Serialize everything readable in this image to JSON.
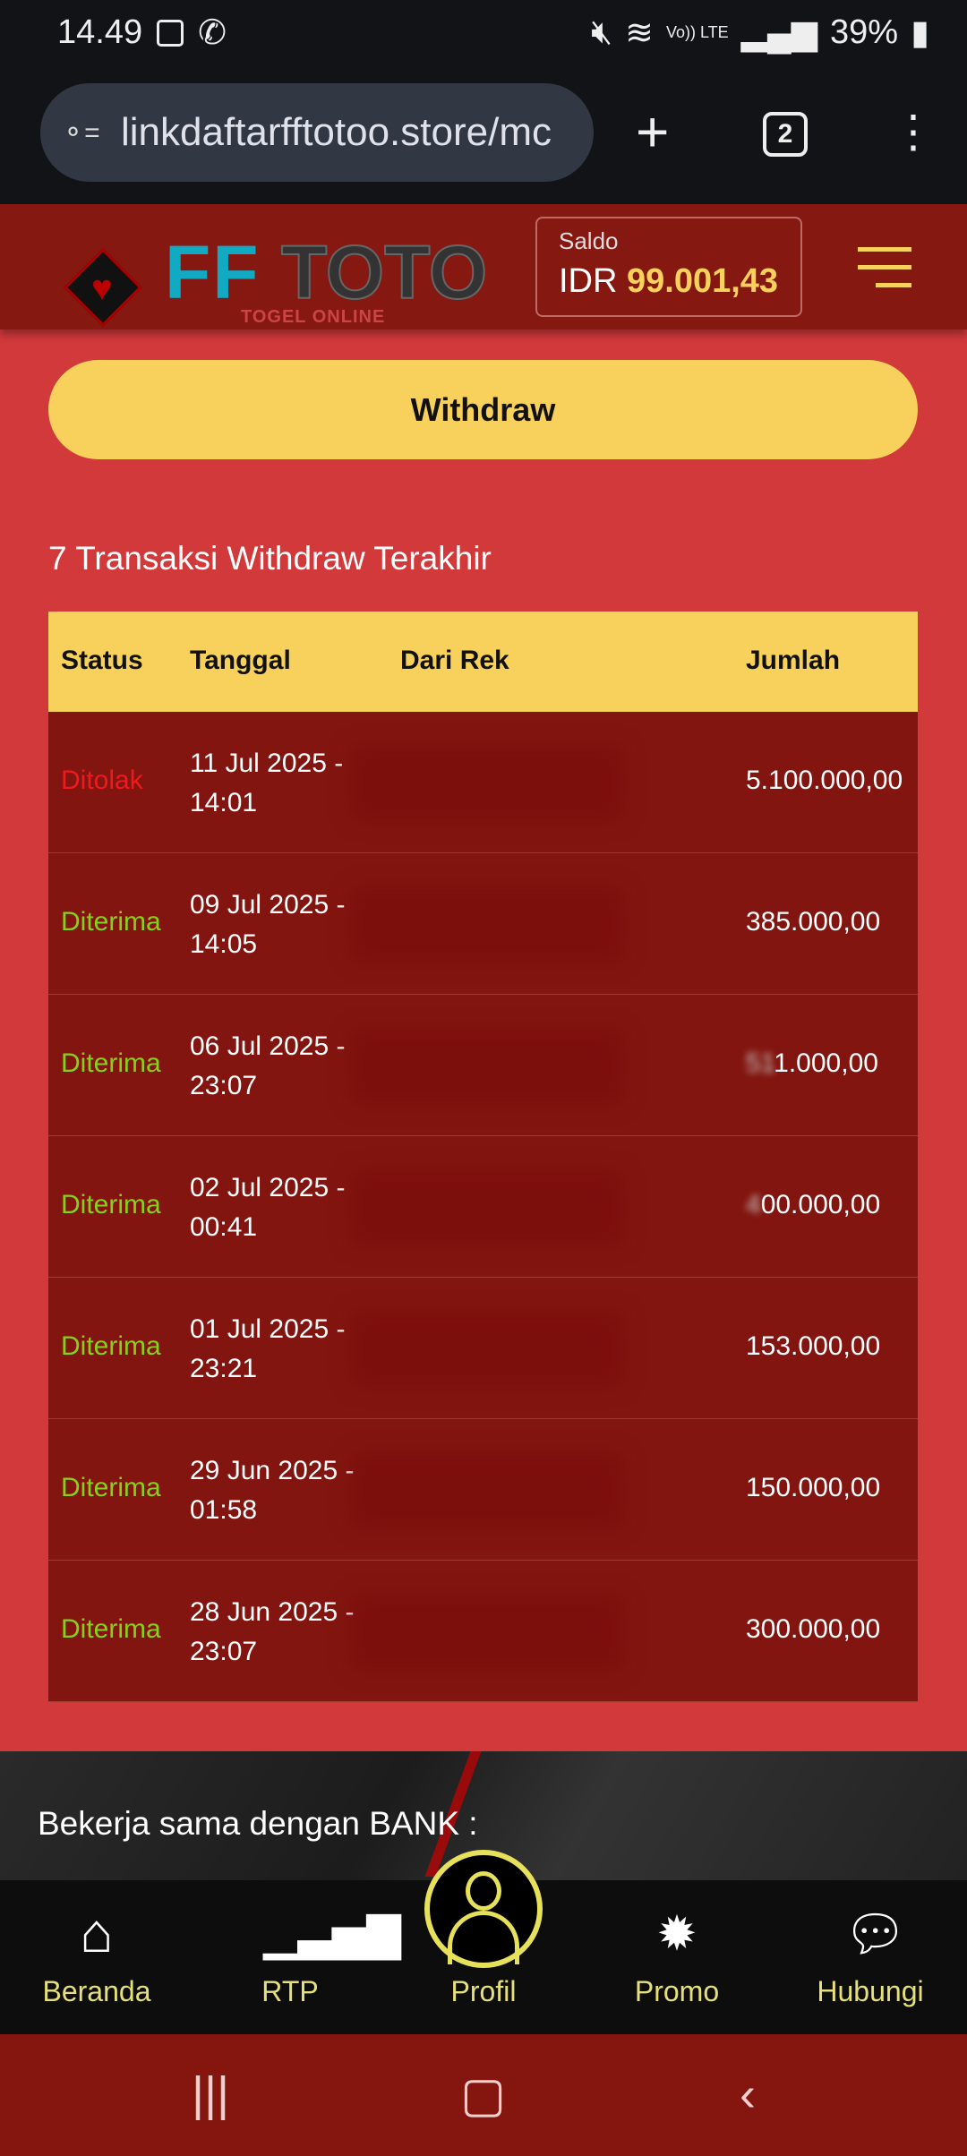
{
  "status_bar": {
    "time": "14.49",
    "battery": "39%",
    "network": "Vo)) LTE"
  },
  "browser": {
    "url": "linkdaftarfftotoo.store/mc",
    "tab_count": "2"
  },
  "header": {
    "logo_text_1": "FF",
    "logo_text_2": "TOTO",
    "logo_sub": "TOGEL ONLINE",
    "saldo_label": "Saldo",
    "currency": "IDR",
    "balance": "99.001,43"
  },
  "withdraw_button": "Withdraw",
  "section_title": "7 Transaksi Withdraw Terakhir",
  "table": {
    "headers": [
      "Status",
      "Tanggal",
      "Dari Rek",
      "Jumlah"
    ],
    "rows": [
      {
        "status": "Ditolak",
        "date": "11 Jul 2025 -",
        "time": "14:01",
        "amount": "5.100.000,00",
        "amount_prefix": ""
      },
      {
        "status": "Diterima",
        "date": "09 Jul 2025 -",
        "time": "14:05",
        "amount": "385.000,00",
        "amount_prefix": ""
      },
      {
        "status": "Diterima",
        "date": "06 Jul 2025 -",
        "time": "23:07",
        "amount": "1.000,00",
        "amount_prefix": "51"
      },
      {
        "status": "Diterima",
        "date": "02 Jul 2025 -",
        "time": "00:41",
        "amount": "00.000,00",
        "amount_prefix": "4"
      },
      {
        "status": "Diterima",
        "date": "01 Jul 2025 -",
        "time": "23:21",
        "amount": "153.000,00",
        "amount_prefix": ""
      },
      {
        "status": "Diterima",
        "date": "29 Jun 2025 -",
        "time": "01:58",
        "amount": "150.000,00",
        "amount_prefix": ""
      },
      {
        "status": "Diterima",
        "date": "28 Jun 2025 -",
        "time": "23:07",
        "amount": "300.000,00",
        "amount_prefix": ""
      }
    ]
  },
  "footer": {
    "partners_label": "Bekerja sama dengan BANK :"
  },
  "bottom_nav": [
    {
      "label": "Beranda",
      "icon": "home-icon"
    },
    {
      "label": "RTP",
      "icon": "chart-icon"
    },
    {
      "label": "Profil",
      "icon": "user-icon"
    },
    {
      "label": "Promo",
      "icon": "discount-icon"
    },
    {
      "label": "Hubungi",
      "icon": "chat-icon"
    }
  ],
  "colors": {
    "accent": "#f7d15c",
    "rejected": "#ef1a1f",
    "accepted": "#86d21b",
    "header": "#861812",
    "body": "#d1393b"
  }
}
